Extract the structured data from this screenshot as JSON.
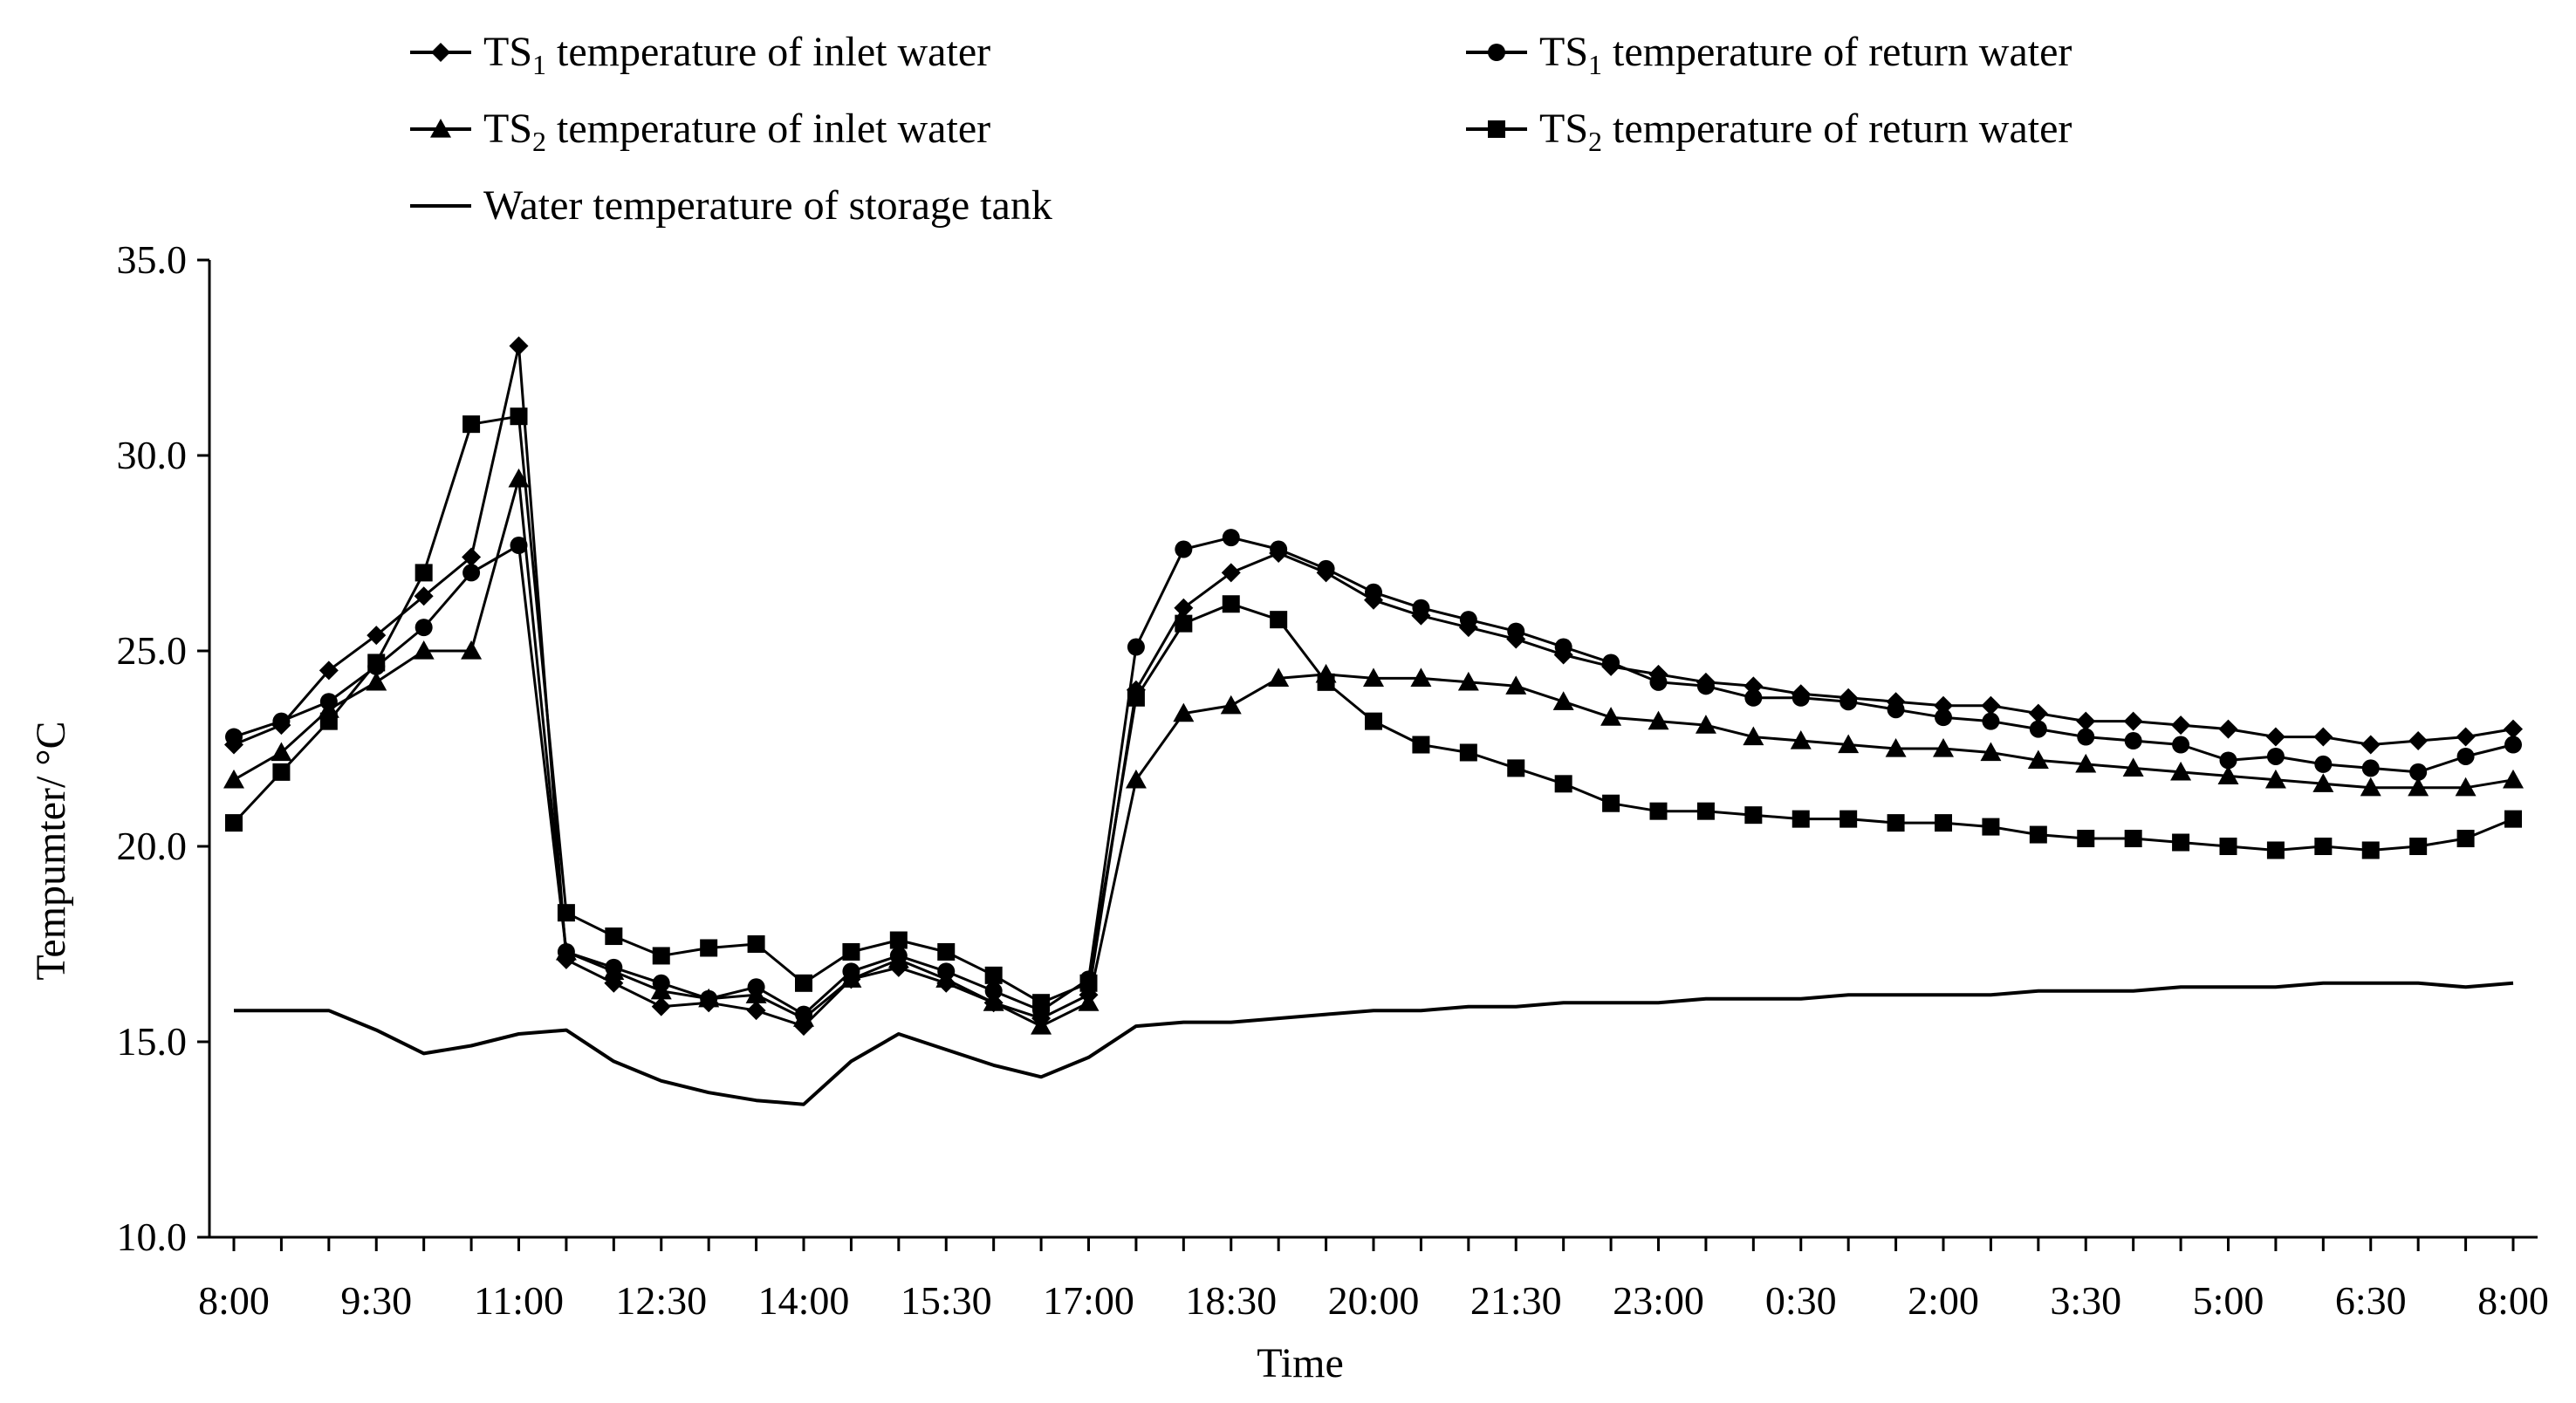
{
  "chart_data": {
    "type": "line",
    "xlabel": "Time",
    "ylabel": "Tempumter/ °C",
    "ylim": [
      10.0,
      35.0
    ],
    "yticks": [
      "10.0",
      "15.0",
      "20.0",
      "25.0",
      "30.0",
      "35.0"
    ],
    "xtick_labels": [
      "8:00",
      "9:30",
      "11:00",
      "12:30",
      "14:00",
      "15:30",
      "17:00",
      "18:30",
      "20:00",
      "21:30",
      "23:00",
      "0:30",
      "2:00",
      "3:30",
      "5:00",
      "6:30",
      "8:00"
    ],
    "legend": {
      "placement": "top",
      "entries": [
        {
          "series": "ts1_inlet",
          "prefix": "TS",
          "sub": "1",
          "rest": " temperature of inlet water"
        },
        {
          "series": "ts1_return",
          "prefix": "TS",
          "sub": "1",
          "rest": " temperature of return water"
        },
        {
          "series": "ts2_inlet",
          "prefix": "TS",
          "sub": "2",
          "rest": " temperature of inlet water"
        },
        {
          "series": "ts2_return",
          "prefix": "TS",
          "sub": "2",
          "rest": " temperature of return water"
        },
        {
          "series": "tank",
          "prefix": "",
          "sub": "",
          "rest": "Water temperature of storage tank"
        }
      ]
    },
    "series": [
      {
        "id": "ts1_inlet",
        "name": "TS1 temperature of inlet water",
        "marker": "diamond",
        "values": [
          22.6,
          23.1,
          24.5,
          25.4,
          26.4,
          27.4,
          32.8,
          17.1,
          16.5,
          15.9,
          16.0,
          15.8,
          15.4,
          16.6,
          16.9,
          16.5,
          16.0,
          15.6,
          16.2,
          24.0,
          26.1,
          27.0,
          27.5,
          27.0,
          26.3,
          25.9,
          25.6,
          25.3,
          24.9,
          24.6,
          24.4,
          24.2,
          24.1,
          23.9,
          23.8,
          23.7,
          23.6,
          23.6,
          23.4,
          23.2,
          23.2,
          23.1,
          23.0,
          22.8,
          22.8,
          22.6,
          22.7,
          22.8,
          23.0
        ]
      },
      {
        "id": "ts1_return",
        "name": "TS1 temperature of return water",
        "marker": "circle",
        "values": [
          22.8,
          23.2,
          23.7,
          24.6,
          25.6,
          27.0,
          27.7,
          17.3,
          16.9,
          16.5,
          16.1,
          16.4,
          15.7,
          16.8,
          17.2,
          16.8,
          16.3,
          15.8,
          16.6,
          25.1,
          27.6,
          27.9,
          27.6,
          27.1,
          26.5,
          26.1,
          25.8,
          25.5,
          25.1,
          24.7,
          24.2,
          24.1,
          23.8,
          23.8,
          23.7,
          23.5,
          23.3,
          23.2,
          23.0,
          22.8,
          22.7,
          22.6,
          22.2,
          22.3,
          22.1,
          22.0,
          21.9,
          22.3,
          22.6
        ]
      },
      {
        "id": "ts2_inlet",
        "name": "TS2 temperature of inlet water",
        "marker": "triangle",
        "values": [
          21.7,
          22.4,
          23.5,
          24.2,
          25.0,
          25.0,
          29.4,
          17.3,
          16.8,
          16.3,
          16.1,
          16.2,
          15.6,
          16.6,
          17.1,
          16.6,
          16.0,
          15.4,
          16.0,
          21.7,
          23.4,
          23.6,
          24.3,
          24.4,
          24.3,
          24.3,
          24.2,
          24.1,
          23.7,
          23.3,
          23.2,
          23.1,
          22.8,
          22.7,
          22.6,
          22.5,
          22.5,
          22.4,
          22.2,
          22.1,
          22.0,
          21.9,
          21.8,
          21.7,
          21.6,
          21.5,
          21.5,
          21.5,
          21.7
        ]
      },
      {
        "id": "ts2_return",
        "name": "TS2 temperature of return water",
        "marker": "square",
        "values": [
          20.6,
          21.9,
          23.2,
          24.7,
          27.0,
          30.8,
          31.0,
          18.3,
          17.7,
          17.2,
          17.4,
          17.5,
          16.5,
          17.3,
          17.6,
          17.3,
          16.7,
          16.0,
          16.5,
          23.8,
          25.7,
          26.2,
          25.8,
          24.2,
          23.2,
          22.6,
          22.4,
          22.0,
          21.6,
          21.1,
          20.9,
          20.9,
          20.8,
          20.7,
          20.7,
          20.6,
          20.6,
          20.5,
          20.3,
          20.2,
          20.2,
          20.1,
          20.0,
          19.9,
          20.0,
          19.9,
          20.0,
          20.2,
          20.7
        ]
      },
      {
        "id": "tank",
        "name": "Water temperature of storage tank",
        "marker": "none",
        "values": [
          15.8,
          15.8,
          15.8,
          15.3,
          14.7,
          14.9,
          15.2,
          15.3,
          14.5,
          14.0,
          13.7,
          13.5,
          13.4,
          14.5,
          15.2,
          14.8,
          14.4,
          14.1,
          14.6,
          15.4,
          15.5,
          15.5,
          15.6,
          15.7,
          15.8,
          15.8,
          15.9,
          15.9,
          16.0,
          16.0,
          16.0,
          16.1,
          16.1,
          16.1,
          16.2,
          16.2,
          16.2,
          16.2,
          16.3,
          16.3,
          16.3,
          16.4,
          16.4,
          16.4,
          16.5,
          16.5,
          16.5,
          16.4,
          16.5
        ]
      }
    ]
  }
}
